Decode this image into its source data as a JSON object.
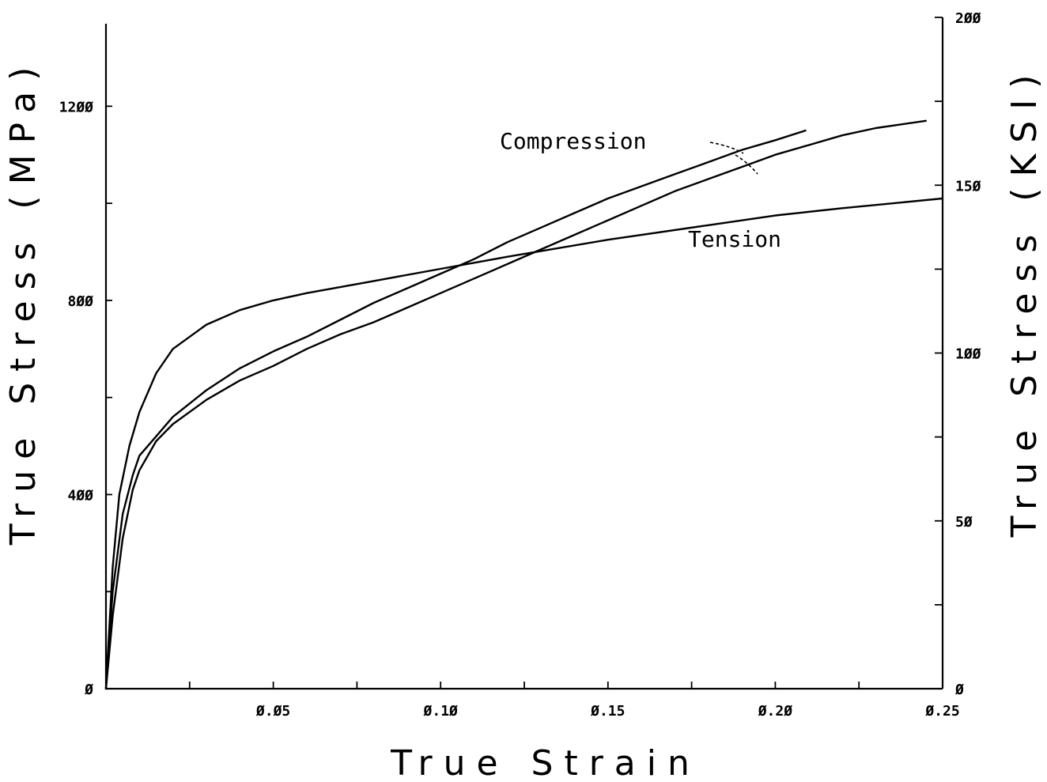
{
  "chart_data": {
    "type": "line",
    "xlabel": "True Strain",
    "ylabel_left": "True Stress (MPa)",
    "ylabel_right": "True Stress (KSI)",
    "xlim": [
      0,
      0.25
    ],
    "ylim_left": [
      0,
      1370
    ],
    "ylim_right": [
      0,
      200
    ],
    "x_ticks": [
      0.05,
      0.1,
      0.15,
      0.2,
      0.25
    ],
    "x_tick_labels": [
      "Ø.Ø5",
      "Ø.1Ø",
      "Ø.15",
      "Ø.2Ø",
      "Ø.25"
    ],
    "y_left_ticks": [
      0,
      400,
      800,
      1200
    ],
    "y_left_tick_labels": [
      "Ø",
      "4ØØ",
      "8ØØ",
      "12ØØ"
    ],
    "y_right_ticks": [
      0,
      50,
      100,
      150,
      200
    ],
    "y_right_tick_labels": [
      "Ø",
      "5Ø",
      "1ØØ",
      "15Ø",
      "2ØØ"
    ],
    "grid": false,
    "annotations": [
      {
        "text": "Compression"
      },
      {
        "text": "Tension"
      }
    ],
    "series": [
      {
        "name": "Tension",
        "x": [
          0,
          0.002,
          0.004,
          0.007,
          0.01,
          0.015,
          0.02,
          0.03,
          0.04,
          0.05,
          0.06,
          0.08,
          0.1,
          0.12,
          0.15,
          0.18,
          0.2,
          0.22,
          0.25
        ],
        "y": [
          0,
          250,
          400,
          500,
          570,
          650,
          700,
          750,
          780,
          800,
          815,
          840,
          865,
          890,
          925,
          955,
          975,
          990,
          1010
        ]
      },
      {
        "name": "Compression",
        "x": [
          0,
          0.002,
          0.005,
          0.008,
          0.01,
          0.015,
          0.02,
          0.03,
          0.04,
          0.05,
          0.06,
          0.07,
          0.08,
          0.09,
          0.1,
          0.11,
          0.12,
          0.13,
          0.14,
          0.15,
          0.16,
          0.17,
          0.18,
          0.19,
          0.2,
          0.209
        ],
        "y": [
          0,
          200,
          360,
          440,
          480,
          520,
          560,
          615,
          660,
          695,
          725,
          760,
          795,
          825,
          855,
          885,
          920,
          950,
          980,
          1010,
          1035,
          1060,
          1085,
          1110,
          1130,
          1150
        ]
      },
      {
        "name": "Compression",
        "x": [
          0,
          0.002,
          0.005,
          0.008,
          0.01,
          0.015,
          0.02,
          0.03,
          0.04,
          0.05,
          0.06,
          0.07,
          0.08,
          0.09,
          0.1,
          0.11,
          0.12,
          0.13,
          0.14,
          0.15,
          0.16,
          0.17,
          0.18,
          0.19,
          0.2,
          0.21,
          0.22,
          0.23,
          0.245
        ],
        "y": [
          0,
          150,
          310,
          410,
          450,
          510,
          545,
          595,
          635,
          665,
          700,
          730,
          755,
          785,
          815,
          845,
          875,
          905,
          935,
          965,
          995,
          1025,
          1050,
          1075,
          1100,
          1120,
          1140,
          1155,
          1170
        ]
      }
    ]
  }
}
